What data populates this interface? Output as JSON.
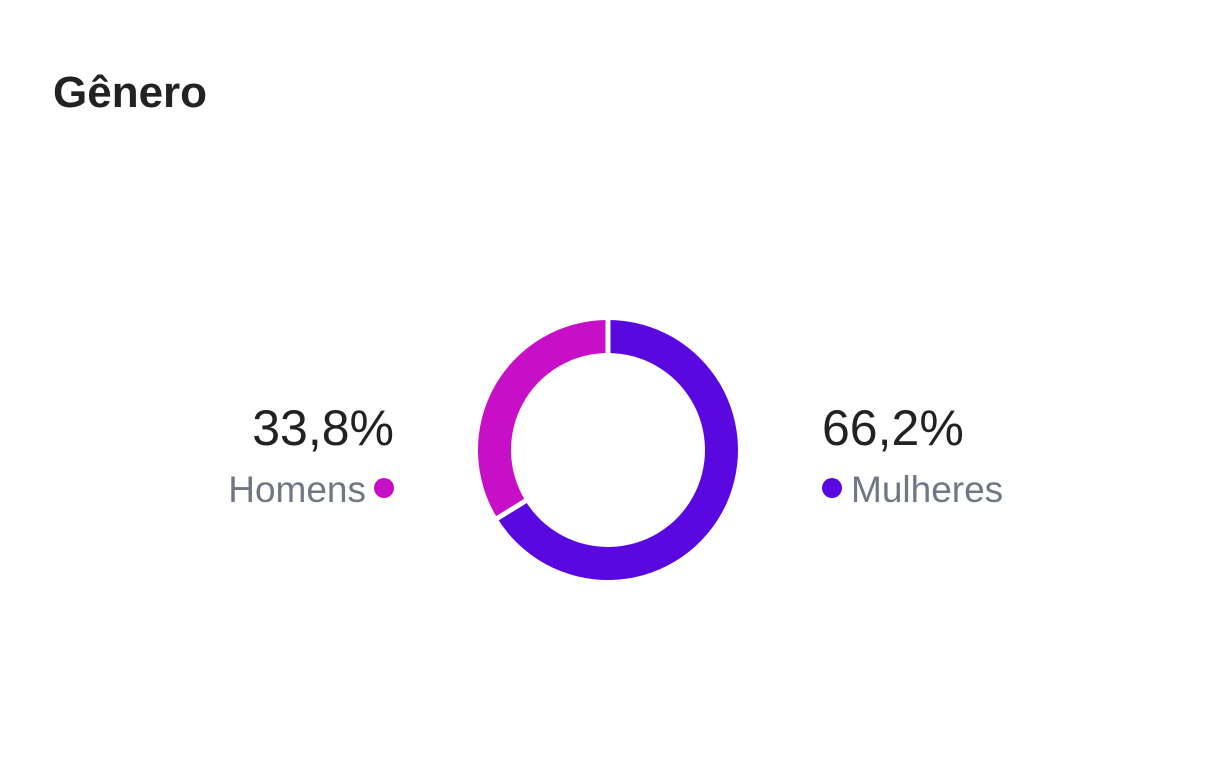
{
  "chart_data": {
    "type": "donut",
    "title": "Gênero",
    "categories": [
      "Homens",
      "Mulheres"
    ],
    "values": [
      33.8,
      66.2
    ],
    "value_labels": [
      "33,8%",
      "66,2%"
    ],
    "colors": [
      "#c80fc8",
      "#5a08e0"
    ]
  }
}
